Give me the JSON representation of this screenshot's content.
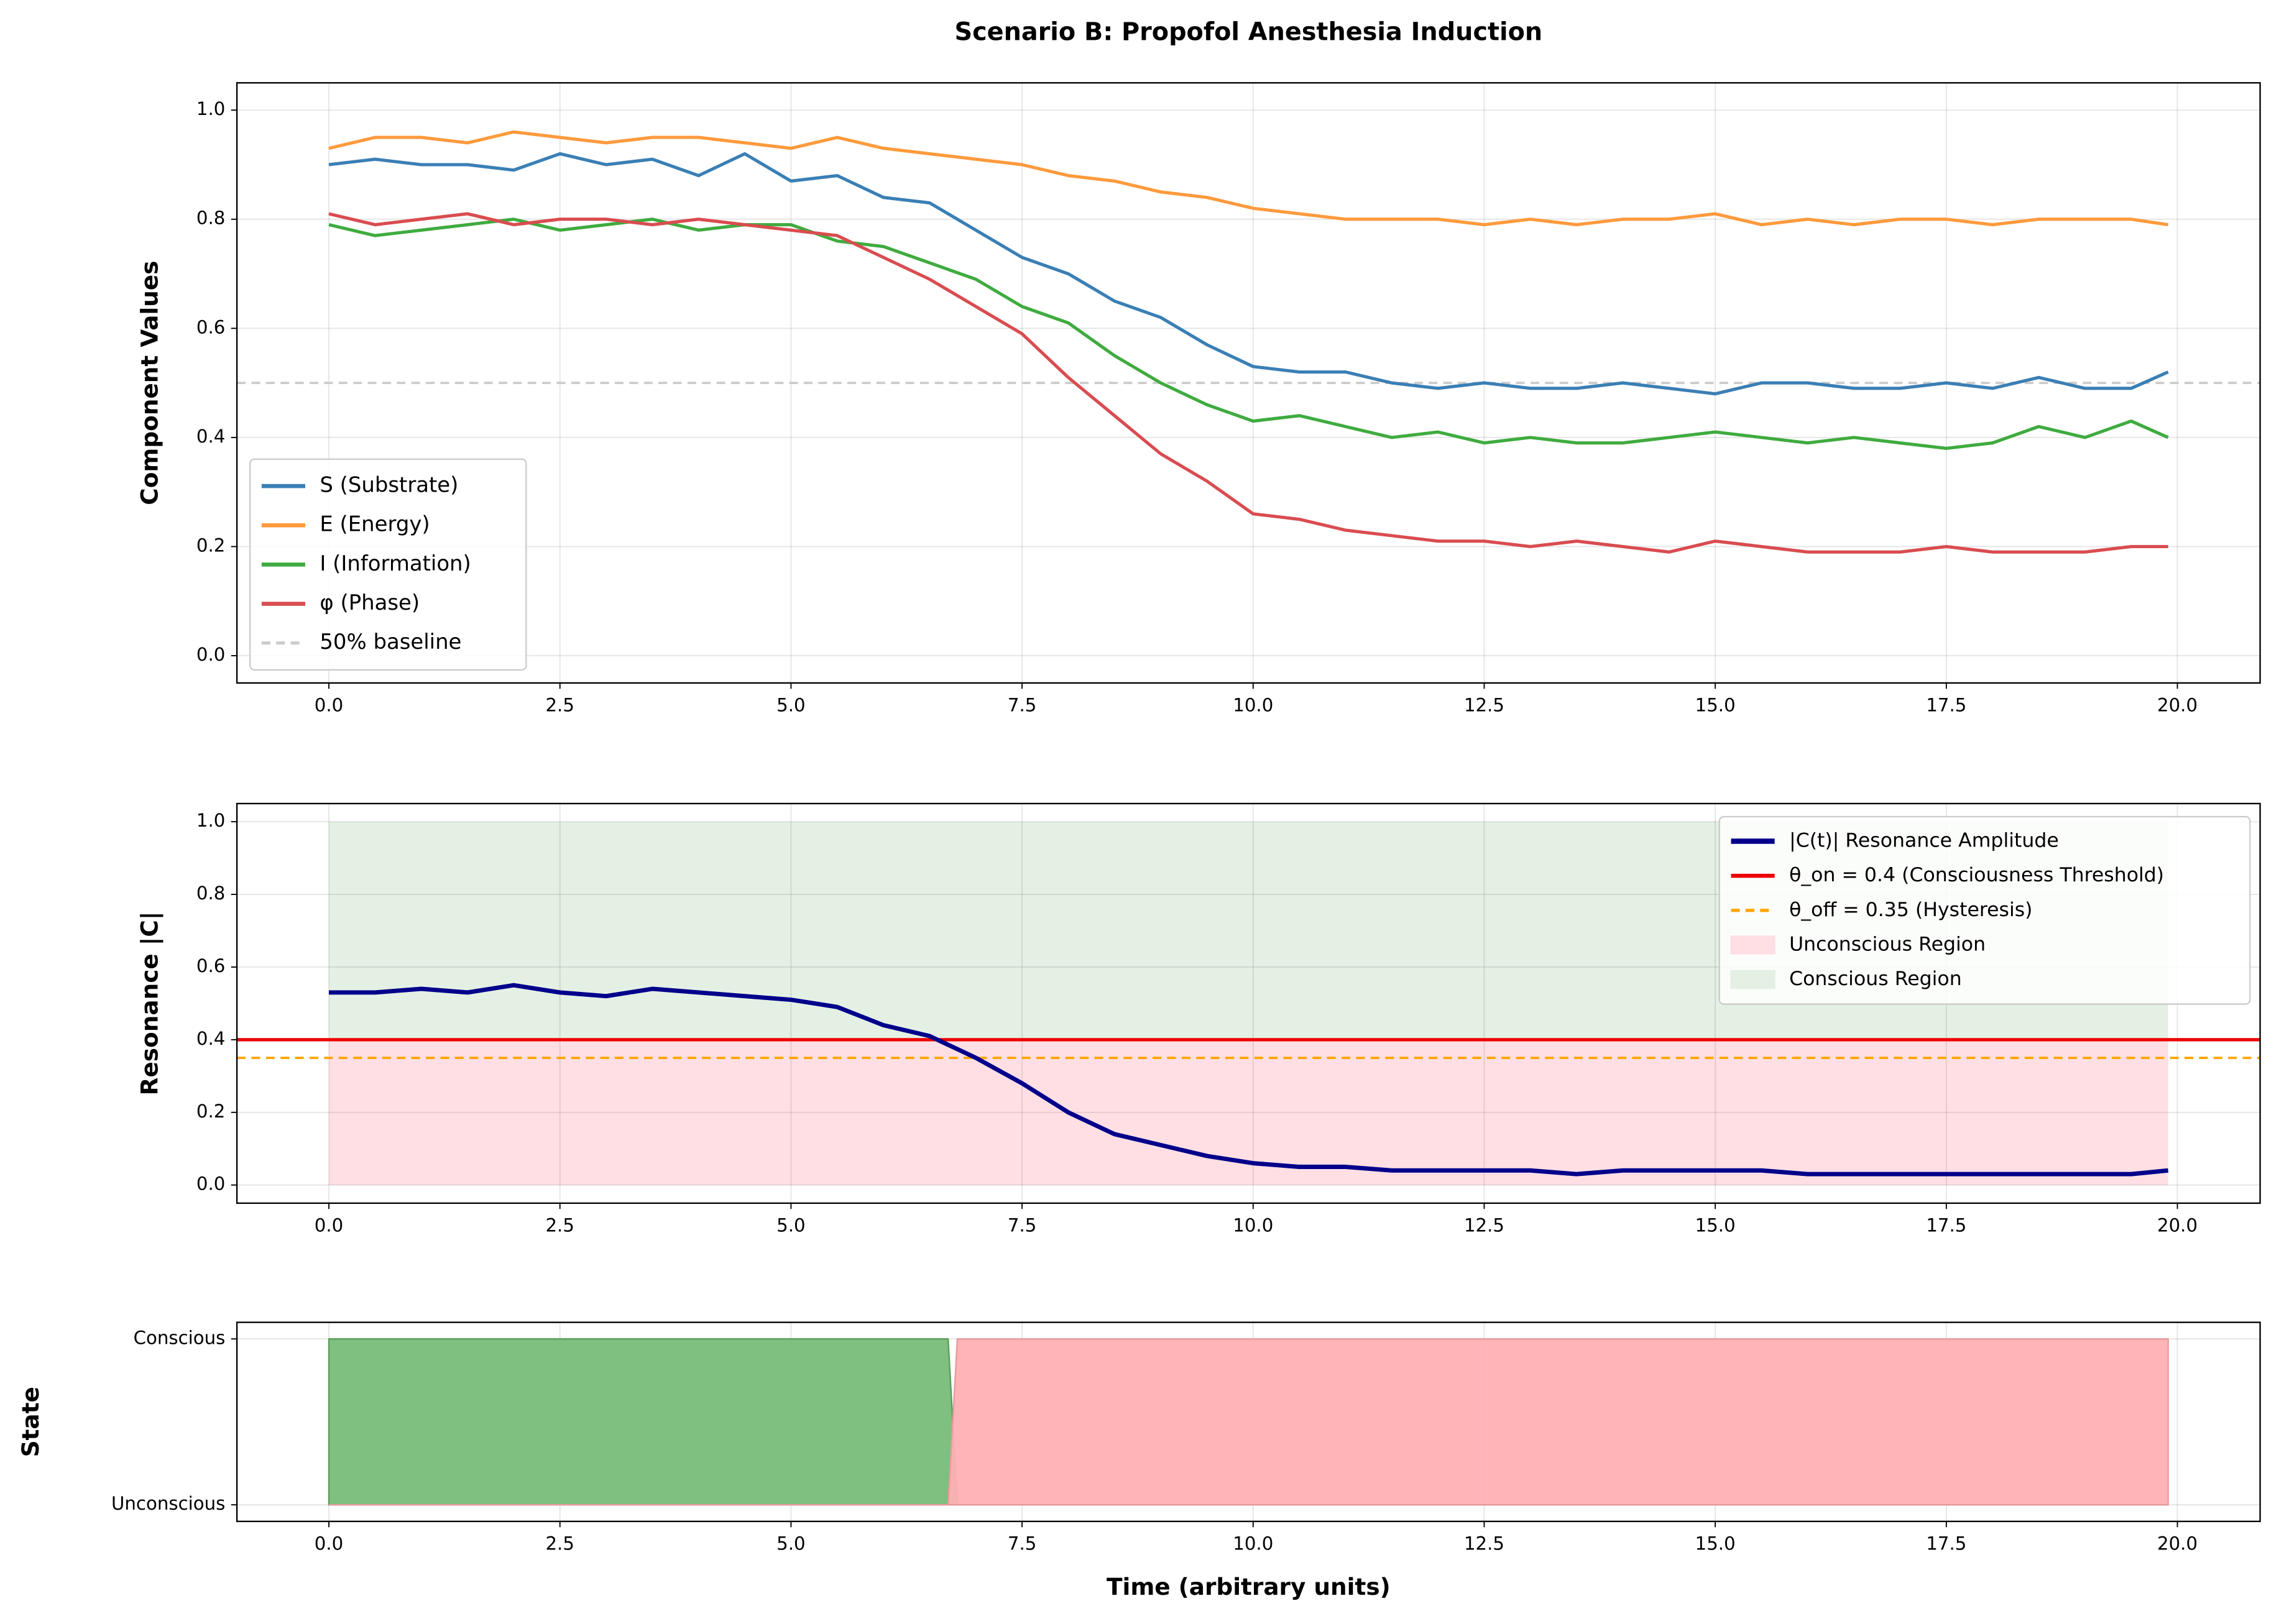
{
  "title": "Scenario B: Propofol Anesthesia Induction",
  "chart_data": [
    {
      "type": "line",
      "ylabel": "Component Values",
      "x": [
        0,
        0.5,
        1,
        1.5,
        2,
        2.5,
        3,
        3.5,
        4,
        4.5,
        5,
        5.5,
        6,
        6.5,
        7,
        7.5,
        8,
        8.5,
        9,
        9.5,
        10,
        10.5,
        11,
        11.5,
        12,
        12.5,
        13,
        13.5,
        14,
        14.5,
        15,
        15.5,
        16,
        16.5,
        17,
        17.5,
        18,
        18.5,
        19,
        19.5,
        19.9
      ],
      "series": [
        {
          "name": "S (Substrate)",
          "color": "#3a7fb5",
          "values": [
            0.9,
            0.91,
            0.9,
            0.9,
            0.89,
            0.92,
            0.9,
            0.91,
            0.88,
            0.92,
            0.87,
            0.88,
            0.84,
            0.83,
            0.78,
            0.73,
            0.7,
            0.65,
            0.62,
            0.57,
            0.53,
            0.52,
            0.52,
            0.5,
            0.49,
            0.5,
            0.49,
            0.49,
            0.5,
            0.49,
            0.48,
            0.5,
            0.5,
            0.49,
            0.49,
            0.5,
            0.49,
            0.51,
            0.49,
            0.49,
            0.52
          ]
        },
        {
          "name": "E (Energy)",
          "color": "#ff9a3c",
          "values": [
            0.93,
            0.95,
            0.95,
            0.94,
            0.96,
            0.95,
            0.94,
            0.95,
            0.95,
            0.94,
            0.93,
            0.95,
            0.93,
            0.92,
            0.91,
            0.9,
            0.88,
            0.87,
            0.85,
            0.84,
            0.82,
            0.81,
            0.8,
            0.8,
            0.8,
            0.79,
            0.8,
            0.79,
            0.8,
            0.8,
            0.81,
            0.79,
            0.8,
            0.79,
            0.8,
            0.8,
            0.79,
            0.8,
            0.8,
            0.8,
            0.79
          ]
        },
        {
          "name": "I (Information)",
          "color": "#3fab3f",
          "values": [
            0.79,
            0.77,
            0.78,
            0.79,
            0.8,
            0.78,
            0.79,
            0.8,
            0.78,
            0.79,
            0.79,
            0.76,
            0.75,
            0.72,
            0.69,
            0.64,
            0.61,
            0.55,
            0.5,
            0.46,
            0.43,
            0.44,
            0.42,
            0.4,
            0.41,
            0.39,
            0.4,
            0.39,
            0.39,
            0.4,
            0.41,
            0.4,
            0.39,
            0.4,
            0.39,
            0.38,
            0.39,
            0.42,
            0.4,
            0.43,
            0.4
          ]
        },
        {
          "name": "φ (Phase)",
          "color": "#d94c50",
          "values": [
            0.81,
            0.79,
            0.8,
            0.81,
            0.79,
            0.8,
            0.8,
            0.79,
            0.8,
            0.79,
            0.78,
            0.77,
            0.73,
            0.69,
            0.64,
            0.59,
            0.51,
            0.44,
            0.37,
            0.32,
            0.26,
            0.25,
            0.23,
            0.22,
            0.21,
            0.21,
            0.2,
            0.21,
            0.2,
            0.19,
            0.21,
            0.2,
            0.19,
            0.19,
            0.19,
            0.2,
            0.19,
            0.19,
            0.19,
            0.2,
            0.2
          ]
        }
      ],
      "hlines": [
        {
          "name": "50% baseline",
          "value": 0.5,
          "color": "#cccccc",
          "dash": true
        }
      ],
      "xlim": [
        -0.995,
        20.895
      ],
      "xticks": [
        {
          "value": 0,
          "label": "0.0"
        },
        2.5,
        {
          "value": 5,
          "label": "5.0"
        },
        7.5,
        {
          "value": 10,
          "label": "10.0"
        },
        12.5,
        {
          "value": 15,
          "label": "15.0"
        },
        17.5,
        {
          "value": 20,
          "label": "20.0"
        }
      ],
      "ylim": [
        -0.05,
        1.05
      ],
      "yticks": [
        {
          "value": 0,
          "label": "0.0"
        },
        0.2,
        0.4,
        0.6,
        0.8,
        {
          "value": 1,
          "label": "1.0"
        }
      ],
      "grid": true,
      "legend": "lower left"
    },
    {
      "type": "line",
      "ylabel": "Resonance |C|",
      "x": [
        0,
        0.5,
        1,
        1.5,
        2,
        2.5,
        3,
        3.5,
        4,
        4.5,
        5,
        5.5,
        6,
        6.5,
        7,
        7.5,
        8,
        8.5,
        9,
        9.5,
        10,
        10.5,
        11,
        11.5,
        12,
        12.5,
        13,
        13.5,
        14,
        14.5,
        15,
        15.5,
        16,
        16.5,
        17,
        17.5,
        18,
        18.5,
        19,
        19.5,
        19.9
      ],
      "series": [
        {
          "name": "|C(t)| Resonance Amplitude",
          "color": "#00008b",
          "values": [
            0.53,
            0.53,
            0.54,
            0.53,
            0.55,
            0.53,
            0.52,
            0.54,
            0.53,
            0.52,
            0.51,
            0.49,
            0.44,
            0.41,
            0.35,
            0.28,
            0.2,
            0.14,
            0.11,
            0.08,
            0.06,
            0.05,
            0.05,
            0.04,
            0.04,
            0.04,
            0.04,
            0.03,
            0.04,
            0.04,
            0.04,
            0.04,
            0.03,
            0.03,
            0.03,
            0.03,
            0.03,
            0.03,
            0.03,
            0.03,
            0.04
          ]
        }
      ],
      "hlines": [
        {
          "name": "θ_on = 0.4 (Consciousness Threshold)",
          "value": 0.4,
          "color": "#ee0000",
          "dash": false
        },
        {
          "name": "θ_off = 0.35 (Hysteresis)",
          "value": 0.35,
          "color": "#ffa500",
          "dash": true
        }
      ],
      "regions": [
        {
          "name": "Unconscious Region",
          "y0": 0,
          "y1": 0.4,
          "color": "#ffdfe3"
        },
        {
          "name": "Conscious Region",
          "y0": 0,
          "y1": 1,
          "color": "#e4f0e4"
        }
      ],
      "xlim": [
        -0.995,
        20.895
      ],
      "xticks": [
        {
          "value": 0,
          "label": "0.0"
        },
        2.5,
        {
          "value": 5,
          "label": "5.0"
        },
        7.5,
        {
          "value": 10,
          "label": "10.0"
        },
        12.5,
        {
          "value": 15,
          "label": "15.0"
        },
        17.5,
        {
          "value": 20,
          "label": "20.0"
        }
      ],
      "ylim": [
        -0.05,
        1.05
      ],
      "yticks": [
        {
          "value": 0,
          "label": "0.0"
        },
        0.2,
        0.4,
        0.6,
        0.8,
        {
          "value": 1,
          "label": "1.0"
        }
      ],
      "grid": true,
      "legend": "upper right"
    },
    {
      "type": "state",
      "ylabel": "State",
      "xlabel": "Time (arbitrary units)",
      "x": [
        0,
        6.7,
        6.8,
        19.9
      ],
      "values": [
        1,
        1,
        0,
        0
      ],
      "fill_colors": [
        "#7fbf7f",
        "#ffb0b3"
      ],
      "xlim": [
        -0.995,
        20.895
      ],
      "xticks": [
        {
          "value": 0,
          "label": "0.0"
        },
        2.5,
        {
          "value": 5,
          "label": "5.0"
        },
        7.5,
        {
          "value": 10,
          "label": "10.0"
        },
        12.5,
        {
          "value": 15,
          "label": "15.0"
        },
        17.5,
        {
          "value": 20,
          "label": "20.0"
        }
      ],
      "ylim": [
        -0.1,
        1.1
      ],
      "yticks": [
        {
          "value": 0,
          "label": "Unconscious"
        },
        {
          "value": 1,
          "label": "Conscious"
        }
      ],
      "grid": true
    }
  ]
}
